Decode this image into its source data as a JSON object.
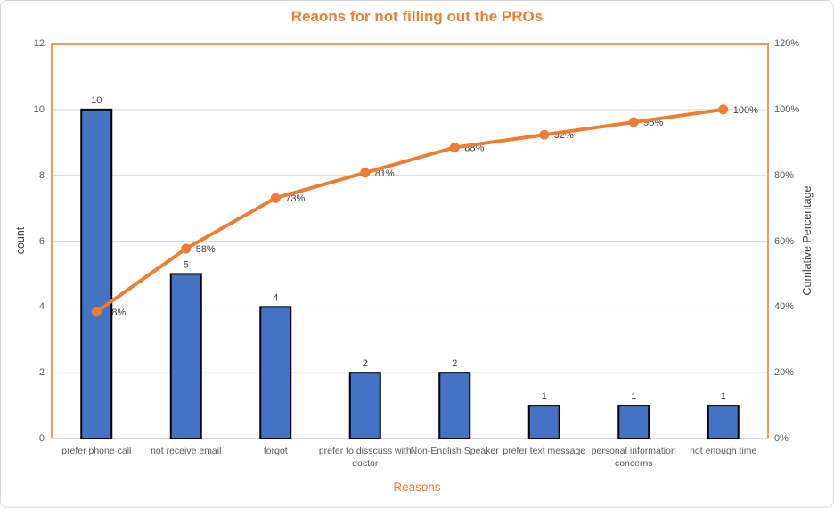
{
  "title": "Reaons for not filling out the PROs",
  "chart_data": {
    "type": "bar",
    "subtype": "pareto-combo-bar-line",
    "title": "Reaons for not filling out the PROs",
    "categories": [
      "prefer phone call",
      "not receive email",
      "forgot",
      "prefer to disscuss with doctor",
      "Non-English Speaker",
      "prefer text message",
      "personal information concerns",
      "not enough time"
    ],
    "series": [
      {
        "name": "count",
        "type": "bar",
        "color": "#4472C4",
        "border_color": "#000000",
        "values": [
          10,
          5,
          4,
          2,
          2,
          1,
          1,
          1
        ],
        "data_labels": [
          "10",
          "5",
          "4",
          "2",
          "2",
          "1",
          "1",
          "1"
        ]
      },
      {
        "name": "Cumlative Percentage",
        "type": "line",
        "color": "#ED7D31",
        "values": [
          38.46,
          57.69,
          73.08,
          80.77,
          88.46,
          92.31,
          96.15,
          100
        ],
        "data_labels": [
          "38%",
          "58%",
          "73%",
          "81%",
          "88%",
          "92%",
          "96%",
          "100%"
        ]
      }
    ],
    "xlabel": "Reasons",
    "ylabel_left": "count",
    "ylabel_right": "Cumlative Percentage",
    "left_axis": {
      "min": 0,
      "max": 12,
      "ticks": [
        "0",
        "2",
        "4",
        "6",
        "8",
        "10",
        "12"
      ]
    },
    "right_axis": {
      "min": 0,
      "max": 120,
      "ticks": [
        "0%",
        "20%",
        "40%",
        "60%",
        "80%",
        "100%",
        "120%"
      ]
    },
    "grid": true,
    "legend": "none"
  },
  "colors": {
    "accent_orange": "#ED7D31",
    "bar_blue": "#4472C4",
    "bar_border": "#000000",
    "plot_border": "#F09A57",
    "gridline": "#D9D9D9",
    "axis_line": "#BFBFBF",
    "tick_text": "#595959",
    "label_text": "#404040"
  }
}
